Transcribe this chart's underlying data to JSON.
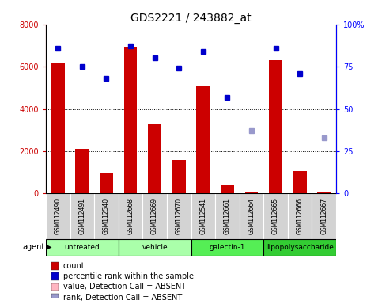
{
  "title": "GDS2221 / 243882_at",
  "samples": [
    "GSM112490",
    "GSM112491",
    "GSM112540",
    "GSM112668",
    "GSM112669",
    "GSM112670",
    "GSM112541",
    "GSM112661",
    "GSM112664",
    "GSM112665",
    "GSM112666",
    "GSM112667"
  ],
  "counts": [
    6150,
    2100,
    1000,
    6950,
    3300,
    1600,
    5100,
    400,
    50,
    6300,
    1050,
    50
  ],
  "percentile_ranks": [
    86,
    75,
    68,
    87,
    80,
    74,
    84,
    57,
    null,
    86,
    71,
    null
  ],
  "absent_rank_values": [
    null,
    null,
    null,
    null,
    null,
    null,
    null,
    null,
    37,
    null,
    null,
    33
  ],
  "groups": [
    {
      "label": "untreated",
      "start": 0,
      "end": 3,
      "color": "#aaffaa"
    },
    {
      "label": "vehicle",
      "start": 3,
      "end": 6,
      "color": "#aaffaa"
    },
    {
      "label": "galectin-1",
      "start": 6,
      "end": 9,
      "color": "#55ee55"
    },
    {
      "label": "lipopolysaccharide",
      "start": 9,
      "end": 12,
      "color": "#33cc33"
    }
  ],
  "ylim_left": [
    0,
    8000
  ],
  "ylim_right": [
    0,
    100
  ],
  "yticks_left": [
    0,
    2000,
    4000,
    6000,
    8000
  ],
  "yticks_right": [
    0,
    25,
    50,
    75,
    100
  ],
  "bar_color": "#CC0000",
  "dot_color": "#0000CC",
  "absent_val_color": "#FFB6C1",
  "absent_rank_color": "#9999CC",
  "legend_labels": [
    "count",
    "percentile rank within the sample",
    "value, Detection Call = ABSENT",
    "rank, Detection Call = ABSENT"
  ]
}
